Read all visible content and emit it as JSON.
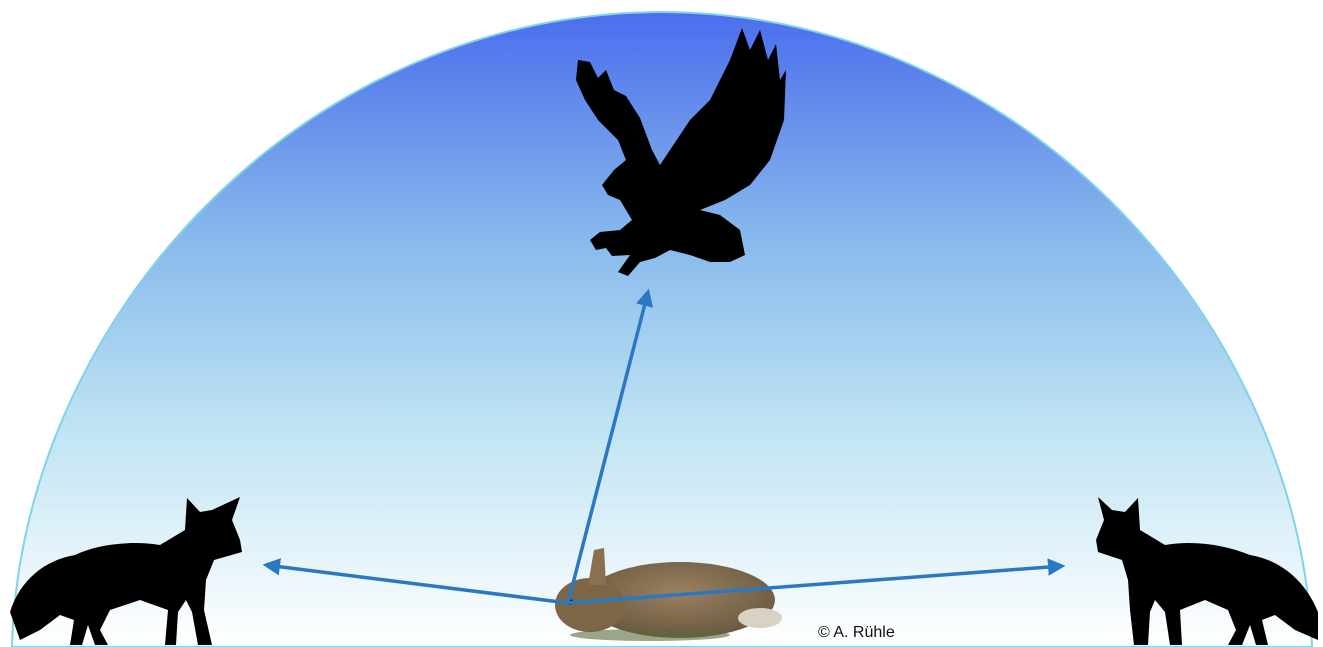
{
  "credit": "© A. Rühle"
}
